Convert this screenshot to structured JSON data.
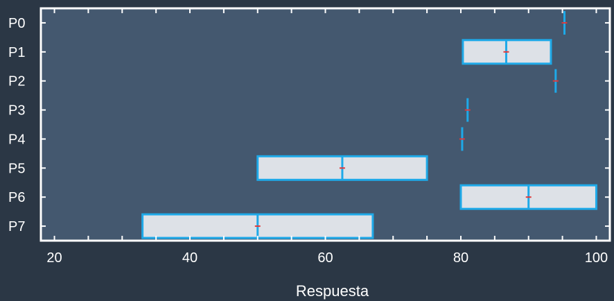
{
  "chart_data": {
    "type": "box",
    "title": "",
    "xlabel": "Respuesta",
    "ylabel": "",
    "xlim": [
      18,
      102
    ],
    "x_ticks": [
      20,
      40,
      60,
      80,
      100
    ],
    "categories": [
      "P0",
      "P1",
      "P2",
      "P3",
      "P4",
      "P5",
      "P6",
      "P7"
    ],
    "boxes": [
      {
        "q1": 95.3,
        "median": 95.3,
        "q3": 95.3,
        "mean": 95.3
      },
      {
        "q1": 80.3,
        "median": 86.7,
        "q3": 93.3,
        "mean": 86.7
      },
      {
        "q1": 94.0,
        "median": 94.0,
        "q3": 94.0,
        "mean": 94.0
      },
      {
        "q1": 81.0,
        "median": 81.0,
        "q3": 81.0,
        "mean": 81.0
      },
      {
        "q1": 80.2,
        "median": 80.2,
        "q3": 80.2,
        "mean": 80.2
      },
      {
        "q1": 50.0,
        "median": 62.5,
        "q3": 75.0,
        "mean": 62.5
      },
      {
        "q1": 80.0,
        "median": 90.0,
        "q3": 100.0,
        "mean": 90.0
      },
      {
        "q1": 33.0,
        "median": 50.0,
        "q3": 67.0,
        "mean": 50.0
      }
    ],
    "grid": false,
    "legend": "none",
    "colors": {
      "page_background": "#2b3745",
      "plot_background": "#44586f",
      "plot_border": "#ffffff",
      "box_fill": "#dde1e7",
      "box_stroke": "#1ea9e8",
      "mean_marker": "#e0393a",
      "text": "#ffffff"
    }
  }
}
